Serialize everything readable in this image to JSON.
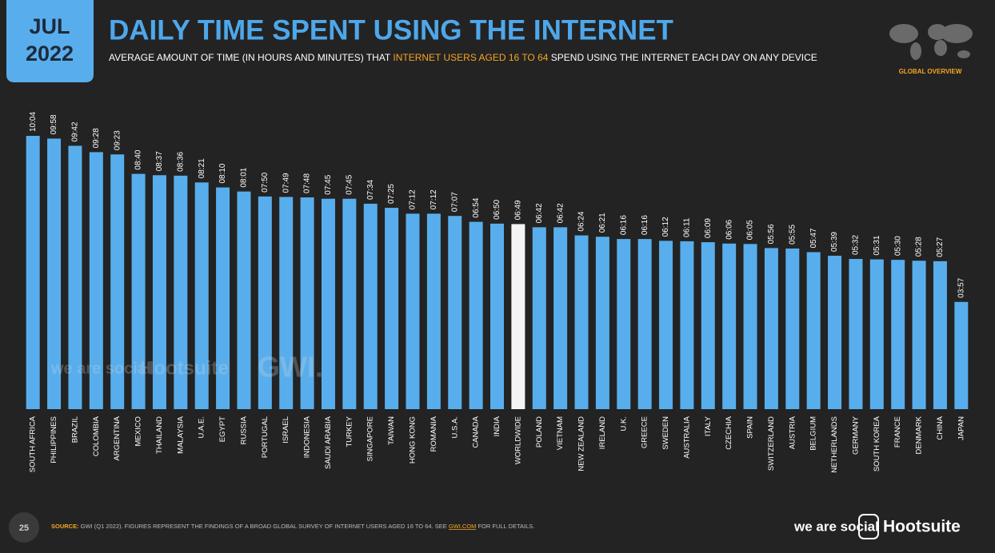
{
  "badge": {
    "month": "JUL",
    "year": "2022"
  },
  "chart_data": {
    "type": "bar",
    "title": "DAILY TIME SPENT USING THE INTERNET",
    "subtitle": [
      "AVERAGE AMOUNT OF TIME (IN HOURS AND MINUTES) THAT ",
      "INTERNET USERS AGED 16 TO 64",
      " SPEND USING THE INTERNET EACH DAY ON ANY DEVICE"
    ],
    "categories": [
      "SOUTH AFRICA",
      "PHILIPPINES",
      "BRAZIL",
      "COLOMBIA",
      "ARGENTINA",
      "MEXICO",
      "THAILAND",
      "MALAYSIA",
      "U.A.E.",
      "EGYPT",
      "RUSSIA",
      "PORTUGAL",
      "ISRAEL",
      "INDONESIA",
      "SAUDI ARABIA",
      "TURKEY",
      "SINGAPORE",
      "TAIWAN",
      "HONG KONG",
      "ROMANIA",
      "U.S.A.",
      "CANADA",
      "INDIA",
      "WORLDWIDE",
      "POLAND",
      "VIETNAM",
      "NEW ZEALAND",
      "IRELAND",
      "U.K.",
      "GREECE",
      "SWEDEN",
      "AUSTRALIA",
      "ITALY",
      "CZECHIA",
      "SPAIN",
      "SWITZERLAND",
      "AUSTRIA",
      "BELGIUM",
      "NETHERLANDS",
      "GERMANY",
      "SOUTH KOREA",
      "FRANCE",
      "DENMARK",
      "CHINA",
      "JAPAN"
    ],
    "values": [
      604,
      598,
      582,
      568,
      563,
      520,
      517,
      516,
      501,
      490,
      481,
      470,
      469,
      468,
      465,
      465,
      454,
      445,
      432,
      432,
      427,
      414,
      410,
      409,
      402,
      402,
      384,
      381,
      376,
      376,
      372,
      371,
      369,
      366,
      365,
      356,
      355,
      347,
      339,
      332,
      331,
      330,
      328,
      327,
      237
    ],
    "value_labels": [
      "10:04",
      "09:58",
      "09:42",
      "09:28",
      "09:23",
      "08:40",
      "08:37",
      "08:36",
      "08:21",
      "08:10",
      "08:01",
      "07:50",
      "07:49",
      "07:48",
      "07:45",
      "07:45",
      "07:34",
      "07:25",
      "07:12",
      "07:12",
      "07:07",
      "06:54",
      "06:50",
      "06:49",
      "06:42",
      "06:42",
      "06:24",
      "06:21",
      "06:16",
      "06:16",
      "06:12",
      "06:11",
      "06:09",
      "06:06",
      "06:05",
      "05:56",
      "05:55",
      "05:47",
      "05:39",
      "05:32",
      "05:31",
      "05:30",
      "05:28",
      "05:27",
      "03:57"
    ],
    "color": "#58aeec",
    "colors": [
      "#58aeec",
      "#58aeec",
      "#58aeec",
      "#58aeec",
      "#58aeec",
      "#58aeec",
      "#58aeec",
      "#58aeec",
      "#58aeec",
      "#58aeec",
      "#58aeec",
      "#58aeec",
      "#58aeec",
      "#58aeec",
      "#58aeec",
      "#58aeec",
      "#58aeec",
      "#58aeec",
      "#58aeec",
      "#58aeec",
      "#58aeec",
      "#58aeec",
      "#58aeec",
      "#f4f4f4",
      "#58aeec",
      "#58aeec",
      "#58aeec",
      "#58aeec",
      "#58aeec",
      "#58aeec",
      "#58aeec",
      "#58aeec",
      "#58aeec",
      "#58aeec",
      "#58aeec",
      "#58aeec",
      "#58aeec",
      "#58aeec",
      "#58aeec",
      "#58aeec",
      "#58aeec",
      "#58aeec",
      "#58aeec",
      "#58aeec",
      "#58aeec"
    ]
  },
  "section": "GLOBAL OVERVIEW",
  "watermarks": [
    "we are social",
    "Hootsuite",
    "GWI."
  ],
  "footer": {
    "page": "25",
    "source": [
      "SOURCE:",
      " GWI (Q1 2022). FIGURES REPRESENT THE FINDINGS OF A BROAD GLOBAL SURVEY OF INTERNET USERS AGED 16 TO 64. SEE ",
      "GWI.COM",
      " FOR FULL DETAILS."
    ],
    "logos": [
      "we are social",
      "Hootsuite"
    ]
  }
}
